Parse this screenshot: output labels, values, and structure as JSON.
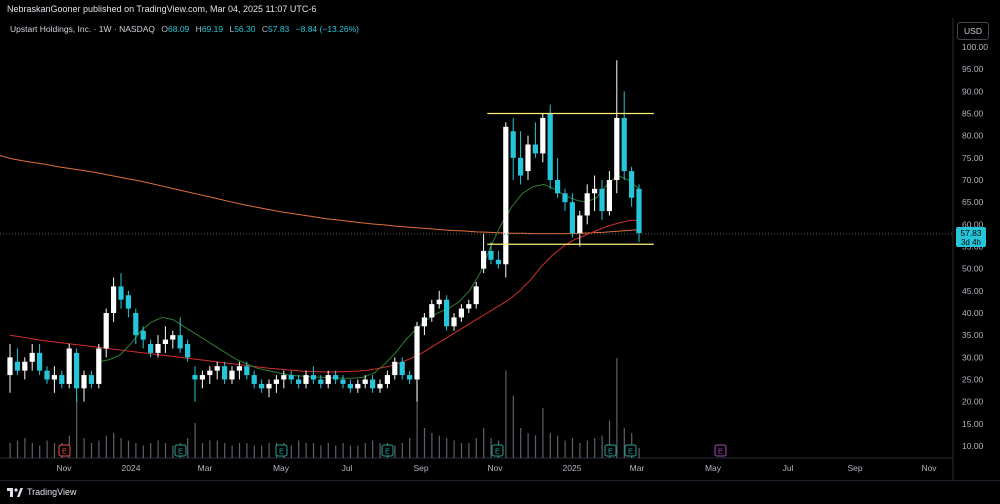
{
  "header": {
    "published_text": "NebraskanGooner published on TradingView.com, Mar 04, 2025 11:07 UTC-6"
  },
  "legend": {
    "symbol": "Upstart Holdings, Inc. · 1W · NASDAQ",
    "open_label": "O",
    "open": "68.09",
    "high_label": "H",
    "high": "69.19",
    "low_label": "L",
    "low": "56.30",
    "close_label": "C",
    "close": "57.83",
    "change": "−8.84 (−13.26%)"
  },
  "currency_button": "USD",
  "price_badge": {
    "price": "57.83",
    "countdown": "3d 4h"
  },
  "footer": {
    "brand": "TradingView"
  },
  "colors": {
    "up": "#ffffff",
    "down": "#26c6da",
    "ma_long": "#e0703a",
    "ma_mid": "#d32f2f",
    "ma_short": "#2e7d32",
    "levels": "#fff176",
    "earnings_past": "#26a69a",
    "earnings_future": "#ab47bc"
  },
  "chart_data": {
    "type": "candlestick",
    "title": "Upstart Holdings, Inc. · 1W · NASDAQ",
    "timeframe": "1W",
    "ylim": [
      6,
      102
    ],
    "y_ticks": [
      "100.00",
      "95.00",
      "90.00",
      "85.00",
      "80.00",
      "75.00",
      "70.00",
      "65.00",
      "60.00",
      "55.00",
      "50.00",
      "45.00",
      "40.00",
      "35.00",
      "30.00",
      "25.00",
      "20.00",
      "15.00",
      "10.00"
    ],
    "x_ticks": [
      "Nov",
      "2024",
      "Mar",
      "May",
      "Jul",
      "Sep",
      "Nov",
      "2025",
      "Mar",
      "May",
      "Jul",
      "Sep",
      "Nov"
    ],
    "last_price": 57.83,
    "horizontal_levels": [
      85,
      55.5
    ],
    "earnings_markers": [
      {
        "label": "E",
        "type": "past"
      },
      {
        "label": "E",
        "type": "past"
      },
      {
        "label": "E",
        "type": "past"
      },
      {
        "label": "E",
        "type": "past"
      },
      {
        "label": "E",
        "type": "past"
      },
      {
        "label": "E",
        "type": "past"
      },
      {
        "label": "E",
        "type": "past"
      },
      {
        "label": "E",
        "type": "future"
      }
    ],
    "candles": [
      {
        "o": 26,
        "h": 33,
        "l": 22,
        "c": 30
      },
      {
        "o": 29,
        "h": 32,
        "l": 26,
        "c": 27
      },
      {
        "o": 27,
        "h": 30,
        "l": 25,
        "c": 29
      },
      {
        "o": 29,
        "h": 33,
        "l": 27,
        "c": 31
      },
      {
        "o": 31,
        "h": 33,
        "l": 26,
        "c": 27
      },
      {
        "o": 27,
        "h": 28,
        "l": 24,
        "c": 25
      },
      {
        "o": 25,
        "h": 28,
        "l": 22,
        "c": 26
      },
      {
        "o": 26,
        "h": 27,
        "l": 23,
        "c": 24
      },
      {
        "o": 24,
        "h": 33,
        "l": 23,
        "c": 32
      },
      {
        "o": 31,
        "h": 32,
        "l": 20,
        "c": 23
      },
      {
        "o": 23,
        "h": 27,
        "l": 20,
        "c": 26
      },
      {
        "o": 26,
        "h": 27,
        "l": 23,
        "c": 24
      },
      {
        "o": 24,
        "h": 33,
        "l": 23,
        "c": 32
      },
      {
        "o": 32,
        "h": 41,
        "l": 30,
        "c": 40
      },
      {
        "o": 40,
        "h": 48,
        "l": 38,
        "c": 46
      },
      {
        "o": 46,
        "h": 49,
        "l": 41,
        "c": 43
      },
      {
        "o": 44,
        "h": 45,
        "l": 39,
        "c": 41
      },
      {
        "o": 40,
        "h": 41,
        "l": 33,
        "c": 35
      },
      {
        "o": 36,
        "h": 37,
        "l": 32,
        "c": 34
      },
      {
        "o": 33,
        "h": 34,
        "l": 30,
        "c": 31
      },
      {
        "o": 31,
        "h": 35,
        "l": 30,
        "c": 33
      },
      {
        "o": 33,
        "h": 37,
        "l": 31,
        "c": 34
      },
      {
        "o": 34,
        "h": 36,
        "l": 32,
        "c": 35
      },
      {
        "o": 35,
        "h": 39,
        "l": 31,
        "c": 32
      },
      {
        "o": 33,
        "h": 34,
        "l": 29,
        "c": 30
      },
      {
        "o": 26,
        "h": 28,
        "l": 20,
        "c": 25
      },
      {
        "o": 25,
        "h": 27,
        "l": 23,
        "c": 26
      },
      {
        "o": 26,
        "h": 28,
        "l": 24,
        "c": 27
      },
      {
        "o": 27,
        "h": 29,
        "l": 25,
        "c": 28
      },
      {
        "o": 28,
        "h": 29,
        "l": 24,
        "c": 25
      },
      {
        "o": 25,
        "h": 28,
        "l": 24,
        "c": 27
      },
      {
        "o": 27,
        "h": 29,
        "l": 25,
        "c": 28
      },
      {
        "o": 28,
        "h": 29,
        "l": 25,
        "c": 26
      },
      {
        "o": 26,
        "h": 27,
        "l": 23,
        "c": 24
      },
      {
        "o": 24,
        "h": 25,
        "l": 22,
        "c": 23
      },
      {
        "o": 23,
        "h": 25,
        "l": 21,
        "c": 24
      },
      {
        "o": 24,
        "h": 26,
        "l": 22,
        "c": 25
      },
      {
        "o": 25,
        "h": 27,
        "l": 23,
        "c": 26
      },
      {
        "o": 26,
        "h": 27,
        "l": 24,
        "c": 25
      },
      {
        "o": 25,
        "h": 26,
        "l": 23,
        "c": 24
      },
      {
        "o": 24,
        "h": 27,
        "l": 23,
        "c": 26
      },
      {
        "o": 26,
        "h": 28,
        "l": 24,
        "c": 25
      },
      {
        "o": 25,
        "h": 26,
        "l": 23,
        "c": 24
      },
      {
        "o": 24,
        "h": 27,
        "l": 23,
        "c": 26
      },
      {
        "o": 26,
        "h": 27,
        "l": 24,
        "c": 25
      },
      {
        "o": 25,
        "h": 26,
        "l": 23,
        "c": 24
      },
      {
        "o": 24,
        "h": 25,
        "l": 22,
        "c": 23
      },
      {
        "o": 23,
        "h": 25,
        "l": 22,
        "c": 24
      },
      {
        "o": 24,
        "h": 26,
        "l": 23,
        "c": 25
      },
      {
        "o": 25,
        "h": 26,
        "l": 22,
        "c": 23
      },
      {
        "o": 23,
        "h": 25,
        "l": 22,
        "c": 24
      },
      {
        "o": 24,
        "h": 27,
        "l": 23,
        "c": 26
      },
      {
        "o": 26,
        "h": 30,
        "l": 25,
        "c": 29
      },
      {
        "o": 29,
        "h": 30,
        "l": 25,
        "c": 26
      },
      {
        "o": 26,
        "h": 27,
        "l": 24,
        "c": 25
      },
      {
        "o": 25,
        "h": 38,
        "l": 20,
        "c": 37
      },
      {
        "o": 37,
        "h": 40,
        "l": 35,
        "c": 39
      },
      {
        "o": 39,
        "h": 43,
        "l": 38,
        "c": 42
      },
      {
        "o": 42,
        "h": 45,
        "l": 41,
        "c": 43
      },
      {
        "o": 43,
        "h": 44,
        "l": 36,
        "c": 37
      },
      {
        "o": 37,
        "h": 40,
        "l": 36,
        "c": 39
      },
      {
        "o": 39,
        "h": 42,
        "l": 38,
        "c": 41
      },
      {
        "o": 41,
        "h": 43,
        "l": 40,
        "c": 42
      },
      {
        "o": 42,
        "h": 47,
        "l": 41,
        "c": 46
      },
      {
        "o": 50,
        "h": 58,
        "l": 49,
        "c": 54
      },
      {
        "o": 54,
        "h": 56,
        "l": 51,
        "c": 52
      },
      {
        "o": 52,
        "h": 54,
        "l": 50,
        "c": 51
      },
      {
        "o": 51,
        "h": 83,
        "l": 48,
        "c": 82
      },
      {
        "o": 81,
        "h": 84,
        "l": 70,
        "c": 75
      },
      {
        "o": 75,
        "h": 81,
        "l": 69,
        "c": 71
      },
      {
        "o": 72,
        "h": 80,
        "l": 70,
        "c": 78
      },
      {
        "o": 78,
        "h": 83,
        "l": 75,
        "c": 76
      },
      {
        "o": 76,
        "h": 85,
        "l": 74,
        "c": 84
      },
      {
        "o": 85,
        "h": 87,
        "l": 68,
        "c": 70
      },
      {
        "o": 70,
        "h": 75,
        "l": 66,
        "c": 67
      },
      {
        "o": 67,
        "h": 68,
        "l": 63,
        "c": 65
      },
      {
        "o": 65,
        "h": 67,
        "l": 57,
        "c": 58
      },
      {
        "o": 58,
        "h": 63,
        "l": 55,
        "c": 62
      },
      {
        "o": 62,
        "h": 69,
        "l": 60,
        "c": 67
      },
      {
        "o": 67,
        "h": 71,
        "l": 63,
        "c": 68
      },
      {
        "o": 68,
        "h": 70,
        "l": 61,
        "c": 63
      },
      {
        "o": 63,
        "h": 72,
        "l": 62,
        "c": 70
      },
      {
        "o": 70,
        "h": 97,
        "l": 67,
        "c": 84
      },
      {
        "o": 84,
        "h": 90,
        "l": 70,
        "c": 72
      },
      {
        "o": 72,
        "h": 73,
        "l": 64,
        "c": 66
      },
      {
        "o": 68,
        "h": 69,
        "l": 56,
        "c": 58
      }
    ],
    "volume": [
      6,
      7,
      8,
      6,
      5,
      7,
      6,
      6,
      9,
      25,
      8,
      6,
      7,
      9,
      10,
      8,
      7,
      6,
      5,
      6,
      7,
      6,
      5,
      6,
      8,
      14,
      6,
      7,
      7,
      6,
      5,
      6,
      6,
      5,
      5,
      6,
      6,
      6,
      5,
      7,
      6,
      6,
      5,
      6,
      5,
      6,
      5,
      5,
      6,
      7,
      6,
      6,
      5,
      6,
      8,
      30,
      12,
      10,
      9,
      8,
      7,
      6,
      6,
      8,
      12,
      8,
      7,
      35,
      25,
      12,
      10,
      9,
      20,
      10,
      9,
      7,
      8,
      6,
      7,
      8,
      9,
      15,
      40,
      12,
      10,
      4
    ],
    "series": [
      {
        "name": "MA long",
        "values": [
          75.5,
          74.8,
          74.3,
          73.9,
          73.5,
          73.0,
          72.6,
          72.2,
          71.8,
          71.3,
          70.8,
          70.3,
          69.8,
          69.2,
          68.6,
          68.0,
          67.4,
          66.8,
          66.2,
          65.6,
          65.0,
          64.4,
          63.9,
          63.4,
          62.9,
          62.5,
          62.1,
          61.7,
          61.3,
          61.0,
          60.7,
          60.4,
          60.1,
          59.9,
          59.6,
          59.4,
          59.2,
          59.0,
          58.8,
          58.6,
          58.5,
          58.3,
          58.2,
          58.1,
          58.0,
          58.0,
          57.9,
          57.9,
          57.9,
          57.9,
          58.0,
          58.1,
          58.2,
          58.4,
          58.6,
          58.8
        ]
      },
      {
        "name": "MA mid",
        "values": [
          35.0,
          34.6,
          34.2,
          33.8,
          33.5,
          33.2,
          32.9,
          32.6,
          32.3,
          32.0,
          31.7,
          31.4,
          31.1,
          30.8,
          30.5,
          30.2,
          29.9,
          29.6,
          29.3,
          29.0,
          28.7,
          28.4,
          28.1,
          27.8,
          27.5,
          27.3,
          27.1,
          26.9,
          26.8,
          26.7,
          26.7,
          26.8,
          26.9,
          27.1,
          27.5,
          28.0,
          28.8,
          29.8,
          31.0,
          32.5,
          34.0,
          35.5,
          37.0,
          38.5,
          40.0,
          41.5,
          43.0,
          45.0,
          47.5,
          50.5,
          53.0,
          55.0,
          56.5,
          57.5,
          58.5,
          59.5,
          60.2,
          60.8,
          61.0
        ]
      },
      {
        "name": "MA short",
        "values": [
          29.0,
          29.5,
          30.5,
          33.0,
          36.0,
          38.0,
          39.0,
          38.5,
          37.0,
          35.5,
          34.0,
          32.5,
          31.0,
          29.5,
          28.5,
          27.5,
          27.0,
          26.5,
          26.0,
          25.8,
          25.6,
          25.5,
          25.4,
          25.3,
          25.3,
          25.5,
          26.5,
          28.5,
          31.0,
          34.0,
          36.5,
          38.5,
          40.0,
          41.0,
          42.5,
          45.0,
          49.0,
          55.0,
          60.0,
          64.0,
          67.0,
          68.5,
          69.0,
          68.0,
          66.5,
          65.5,
          65.0,
          66.0,
          69.0,
          71.0,
          70.0,
          68.0
        ]
      }
    ]
  }
}
